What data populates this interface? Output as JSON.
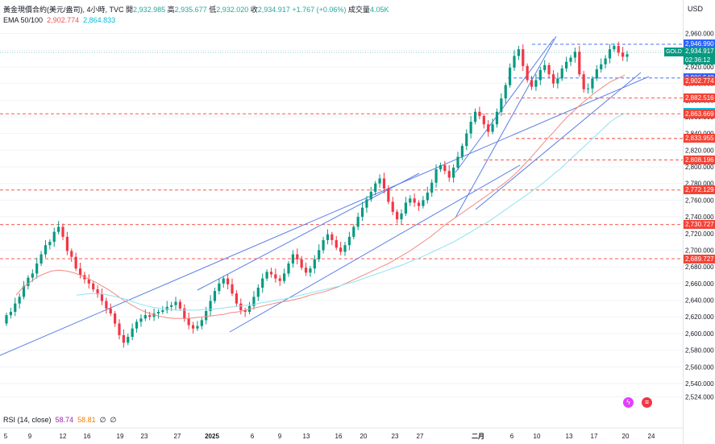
{
  "header": {
    "symbol": "黃金現價合約(美元/盎司), 4小時, TVC",
    "open_label": "開",
    "open": "2,932.985",
    "high_label": "高",
    "high": "2,935.677",
    "low_label": "低",
    "low": "2,932.020",
    "close_label": "收",
    "close": "2,934.917",
    "change": "+1.767 (+0.06%)",
    "volume_label": "成交量",
    "volume": "4.05K"
  },
  "ema": {
    "label": "EMA 50/100",
    "ema50": "2,902.774",
    "ema100": "2,864.833",
    "ema50_color": "#f44336",
    "ema100_color": "#00bcd4"
  },
  "rsi": {
    "label": "RSI (14, close)",
    "value1": "58.74",
    "value2": "58.81",
    "null1": "∅",
    "null2": "∅"
  },
  "currency": "USD",
  "ticker_badge": "GOLD",
  "current_price": "2,934.917",
  "countdown": "02:36:12",
  "price_tags": [
    {
      "label": "2,946.990",
      "price": 2946.99,
      "color": "#2962ff"
    },
    {
      "label": "2,906.548",
      "price": 2906.548,
      "color": "#2962ff"
    },
    {
      "label": "2,902.774",
      "price": 2902.774,
      "color": "#f44336"
    },
    {
      "label": "2,882.516",
      "price": 2882.516,
      "color": "#f44336"
    },
    {
      "label": "2,864.833",
      "price": 2864.833,
      "color": "#00bcd4"
    },
    {
      "label": "2,863.669",
      "price": 2863.669,
      "color": "#f44336"
    },
    {
      "label": "2,833.955",
      "price": 2833.955,
      "color": "#f44336"
    },
    {
      "label": "2,808.196",
      "price": 2808.196,
      "color": "#f44336"
    },
    {
      "label": "2,772.129",
      "price": 2772.129,
      "color": "#f44336"
    },
    {
      "label": "2,730.727",
      "price": 2730.727,
      "color": "#f44336"
    },
    {
      "label": "2,689.727",
      "price": 2689.727,
      "color": "#f44336"
    }
  ],
  "chart_data": {
    "type": "candlestick",
    "timeframe": "4h",
    "y_ticks": [
      2960,
      2940,
      2920,
      2900,
      2880,
      2860,
      2840,
      2820,
      2800,
      2780,
      2760,
      2740,
      2720,
      2700,
      2680,
      2660,
      2640,
      2620,
      2600,
      2580,
      2560,
      2540,
      2524
    ],
    "y_tick_labels": [
      "2,960.000",
      "2,940.000",
      "2,920.000",
      "2,900.000",
      "2,880.000",
      "2,860.000",
      "2,840.000",
      "2,820.000",
      "2,800.000",
      "2,780.000",
      "2,760.000",
      "2,740.000",
      "2,720.000",
      "2,700.000",
      "2,680.000",
      "2,660.000",
      "2,640.000",
      "2,620.000",
      "2,600.000",
      "2,580.000",
      "2,560.000",
      "2,540.000",
      "2,524.000"
    ],
    "ylim": [
      2516,
      2972
    ],
    "x_labels": [
      "5",
      "9",
      "12",
      "16",
      "19",
      "23",
      "27",
      "2025",
      "6",
      "9",
      "13",
      "16",
      "20",
      "23",
      "27",
      "二月",
      "6",
      "10",
      "13",
      "17",
      "20",
      "24"
    ],
    "candle_colors": {
      "up": "#089981",
      "down": "#f23645"
    },
    "closes": [
      2622,
      2626,
      2636,
      2644,
      2657,
      2667,
      2672,
      2684,
      2695,
      2706,
      2710,
      2722,
      2728,
      2716,
      2699,
      2692,
      2678,
      2670,
      2665,
      2660,
      2653,
      2647,
      2639,
      2630,
      2624,
      2612,
      2598,
      2589,
      2596,
      2606,
      2614,
      2618,
      2622,
      2620,
      2624,
      2626,
      2628,
      2632,
      2634,
      2638,
      2630,
      2618,
      2610,
      2606,
      2609,
      2616,
      2627,
      2639,
      2651,
      2660,
      2666,
      2659,
      2648,
      2636,
      2628,
      2626,
      2633,
      2644,
      2655,
      2666,
      2674,
      2671,
      2666,
      2663,
      2672,
      2684,
      2695,
      2689,
      2679,
      2673,
      2678,
      2689,
      2700,
      2712,
      2719,
      2712,
      2703,
      2698,
      2706,
      2716,
      2728,
      2740,
      2751,
      2761,
      2770,
      2780,
      2786,
      2774,
      2758,
      2746,
      2737,
      2744,
      2757,
      2762,
      2757,
      2753,
      2760,
      2769,
      2781,
      2797,
      2802,
      2795,
      2787,
      2799,
      2812,
      2825,
      2840,
      2854,
      2866,
      2861,
      2851,
      2842,
      2851,
      2866,
      2882,
      2898,
      2919,
      2933,
      2941,
      2921,
      2904,
      2896,
      2904,
      2916,
      2922,
      2911,
      2900,
      2906,
      2918,
      2926,
      2931,
      2938,
      2911,
      2893,
      2894,
      2906,
      2917,
      2923,
      2930,
      2941,
      2945,
      2937,
      2932,
      2935
    ],
    "ema50": [
      2646,
      2656,
      2662,
      2668,
      2672,
      2675,
      2676,
      2675,
      2673,
      2670,
      2666,
      2662,
      2657,
      2652,
      2646,
      2640,
      2635,
      2630,
      2626,
      2623,
      2621,
      2619,
      2618,
      2618,
      2618,
      2619,
      2620,
      2621,
      2622,
      2623,
      2625,
      2626,
      2628,
      2630,
      2632,
      2634,
      2636,
      2638,
      2639,
      2641,
      2643,
      2646,
      2648,
      2650,
      2653,
      2656,
      2660,
      2664,
      2668,
      2672,
      2676,
      2680,
      2684,
      2689,
      2694,
      2699,
      2705,
      2711,
      2717,
      2724,
      2731,
      2737,
      2743,
      2749,
      2755,
      2761,
      2767,
      2773,
      2779,
      2786,
      2794,
      2803,
      2812,
      2822,
      2832,
      2841,
      2851,
      2860,
      2868,
      2876,
      2883,
      2890,
      2896,
      2902,
      2906,
      2910
    ],
    "ema100": [
      2646,
      2647,
      2648,
      2648,
      2647,
      2645,
      2643,
      2641,
      2638,
      2635,
      2633,
      2631,
      2630,
      2629,
      2628,
      2628,
      2628,
      2628,
      2629,
      2629,
      2630,
      2631,
      2632,
      2633,
      2634,
      2635,
      2637,
      2638,
      2640,
      2641,
      2643,
      2645,
      2647,
      2649,
      2651,
      2653,
      2655,
      2657,
      2660,
      2662,
      2665,
      2668,
      2671,
      2674,
      2677,
      2680,
      2683,
      2687,
      2690,
      2694,
      2698,
      2702,
      2706,
      2710,
      2715,
      2720,
      2725,
      2730,
      2735,
      2741,
      2747,
      2753,
      2759,
      2765,
      2771,
      2777,
      2784,
      2791,
      2798,
      2806,
      2814,
      2822,
      2830,
      2838,
      2846,
      2854,
      2860,
      2864
    ]
  }
}
